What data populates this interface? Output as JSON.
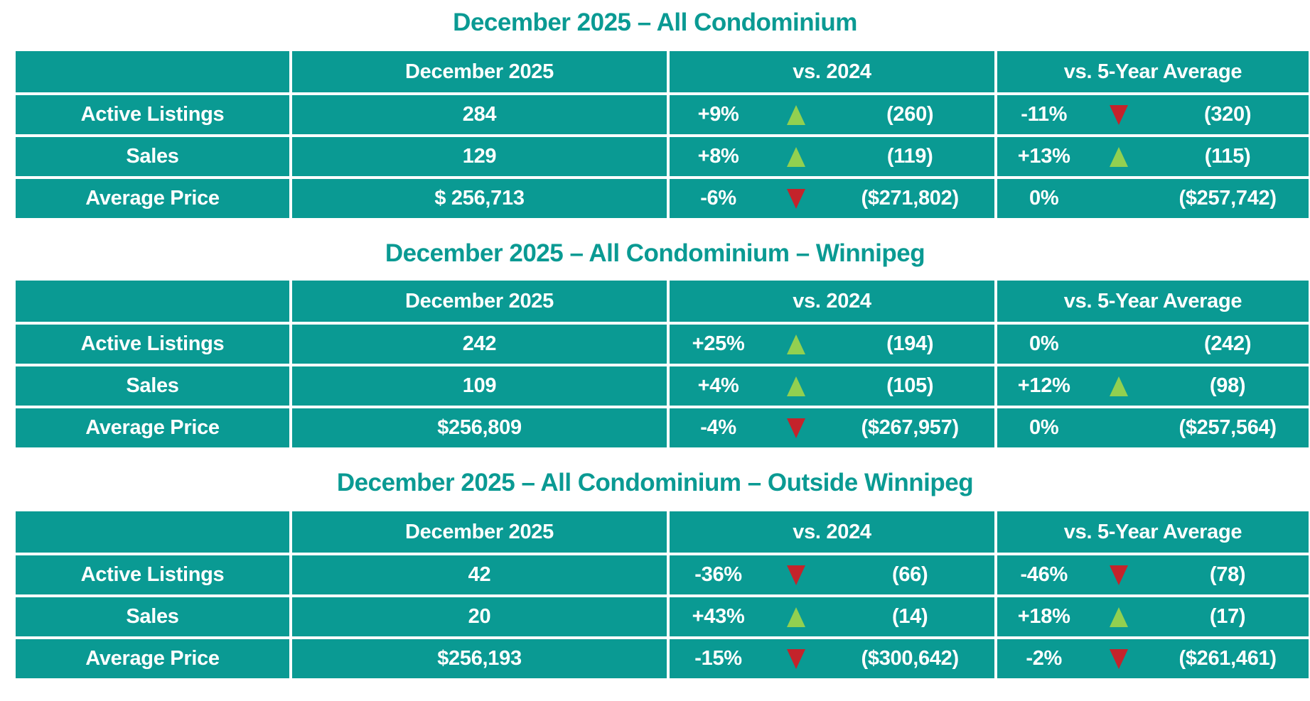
{
  "colors": {
    "teal": "#0a9a93",
    "title_teal": "#0a9a93",
    "up_arrow_green": "#92d050",
    "down_arrow_red": "#c4232b",
    "text_white": "#ffffff"
  },
  "tables": [
    {
      "title": "December 2025 – All Condominium",
      "headers": {
        "current": "December 2025",
        "vs2024": "vs. 2024",
        "vs5yr": "vs. 5-Year Average"
      },
      "rows": [
        {
          "label": "Active Listings",
          "current": "284",
          "vs2024": {
            "pct": "+9%",
            "dir": "up",
            "value": "(260)"
          },
          "vs5yr": {
            "pct": "-11%",
            "dir": "down",
            "value": "(320)"
          }
        },
        {
          "label": "Sales",
          "current": "129",
          "vs2024": {
            "pct": "+8%",
            "dir": "up",
            "value": "(119)"
          },
          "vs5yr": {
            "pct": "+13%",
            "dir": "up",
            "value": "(115)"
          }
        },
        {
          "label": "Average Price",
          "current": "$ 256,713",
          "vs2024": {
            "pct": "-6%",
            "dir": "down",
            "value": "($271,802)"
          },
          "vs5yr": {
            "pct": "0%",
            "dir": "none",
            "value": "($257,742)"
          }
        }
      ]
    },
    {
      "title": "December 2025 – All Condominium – Winnipeg",
      "headers": {
        "current": "December 2025",
        "vs2024": "vs. 2024",
        "vs5yr": "vs. 5-Year Average"
      },
      "rows": [
        {
          "label": "Active Listings",
          "current": "242",
          "vs2024": {
            "pct": "+25%",
            "dir": "up",
            "value": "(194)"
          },
          "vs5yr": {
            "pct": "0%",
            "dir": "none",
            "value": "(242)"
          }
        },
        {
          "label": "Sales",
          "current": "109",
          "vs2024": {
            "pct": "+4%",
            "dir": "up",
            "value": "(105)"
          },
          "vs5yr": {
            "pct": "+12%",
            "dir": "up",
            "value": "(98)"
          }
        },
        {
          "label": "Average Price",
          "current": "$256,809",
          "vs2024": {
            "pct": "-4%",
            "dir": "down",
            "value": "($267,957)"
          },
          "vs5yr": {
            "pct": "0%",
            "dir": "none",
            "value": "($257,564)"
          }
        }
      ]
    },
    {
      "title": "December 2025 – All Condominium – Outside Winnipeg",
      "headers": {
        "current": "December 2025",
        "vs2024": "vs. 2024",
        "vs5yr": "vs. 5-Year Average"
      },
      "rows": [
        {
          "label": "Active Listings",
          "current": "42",
          "vs2024": {
            "pct": "-36%",
            "dir": "down",
            "value": "(66)"
          },
          "vs5yr": {
            "pct": "-46%",
            "dir": "down",
            "value": "(78)"
          }
        },
        {
          "label": "Sales",
          "current": "20",
          "vs2024": {
            "pct": "+43%",
            "dir": "up",
            "value": "(14)"
          },
          "vs5yr": {
            "pct": "+18%",
            "dir": "up",
            "value": "(17)"
          }
        },
        {
          "label": "Average Price",
          "current": "$256,193",
          "vs2024": {
            "pct": "-15%",
            "dir": "down",
            "value": "($300,642)"
          },
          "vs5yr": {
            "pct": "-2%",
            "dir": "down",
            "value": "($261,461)"
          }
        }
      ]
    }
  ]
}
